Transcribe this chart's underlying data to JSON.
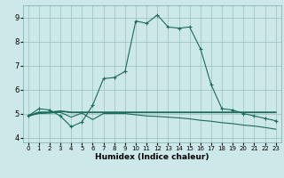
{
  "xlabel": "Humidex (Indice chaleur)",
  "bg_color": "#cce8e8",
  "grid_color": "#9dbfbf",
  "line_color": "#1a6b5a",
  "xlim": [
    -0.5,
    23.5
  ],
  "ylim": [
    3.8,
    9.5
  ],
  "xticks": [
    0,
    1,
    2,
    3,
    4,
    5,
    6,
    7,
    8,
    9,
    10,
    11,
    12,
    13,
    14,
    15,
    16,
    17,
    18,
    19,
    20,
    21,
    22,
    23
  ],
  "yticks": [
    4,
    5,
    6,
    7,
    8,
    9
  ],
  "series1_x": [
    0,
    1,
    2,
    3,
    4,
    5,
    6,
    7,
    8,
    9,
    10,
    11,
    12,
    13,
    14,
    15,
    16,
    17,
    18,
    19,
    20,
    21,
    22,
    23
  ],
  "series1_y": [
    4.9,
    5.2,
    5.15,
    4.9,
    4.45,
    4.65,
    5.35,
    6.45,
    6.5,
    6.75,
    8.85,
    8.75,
    9.1,
    8.6,
    8.55,
    8.6,
    7.7,
    6.2,
    5.2,
    5.15,
    5.0,
    4.9,
    4.8,
    4.7
  ],
  "series2_x": [
    0,
    1,
    2,
    3,
    4,
    5,
    6,
    7,
    8,
    9,
    10,
    11,
    12,
    13,
    14,
    15,
    16,
    17,
    18,
    19,
    20,
    21,
    22,
    23
  ],
  "series2_y": [
    4.9,
    5.0,
    5.02,
    5.05,
    4.85,
    5.02,
    4.75,
    5.0,
    5.0,
    5.0,
    4.95,
    4.9,
    4.88,
    4.85,
    4.82,
    4.78,
    4.72,
    4.68,
    4.62,
    4.58,
    4.52,
    4.48,
    4.42,
    4.35
  ],
  "series3_x": [
    0,
    1,
    2,
    3,
    4,
    5,
    6,
    7,
    8,
    9,
    10,
    11,
    12,
    13,
    14,
    15,
    16,
    17,
    18,
    19,
    20,
    21,
    22,
    23
  ],
  "series3_y": [
    4.9,
    5.05,
    5.05,
    5.1,
    5.05,
    5.05,
    5.05,
    5.05,
    5.05,
    5.05,
    5.05,
    5.05,
    5.05,
    5.05,
    5.05,
    5.05,
    5.05,
    5.05,
    5.05,
    5.05,
    5.05,
    5.05,
    5.05,
    5.05
  ]
}
